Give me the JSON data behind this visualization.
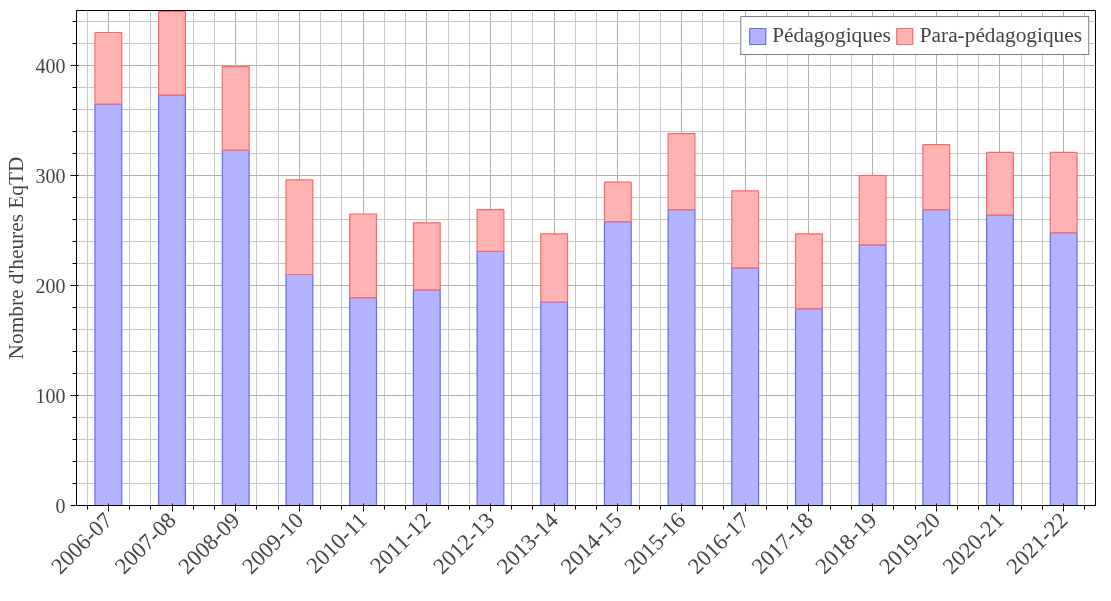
{
  "chart_data": {
    "type": "bar",
    "stacked": true,
    "ylabel": "Nombre d'heures EqTD",
    "categories": [
      "2006-07",
      "2007-08",
      "2008-09",
      "2009-10",
      "2010-11",
      "2011-12",
      "2012-13",
      "2013-14",
      "2014-15",
      "2015-16",
      "2016-17",
      "2017-18",
      "2018-19",
      "2019-20",
      "2020-21",
      "2021-22"
    ],
    "series": [
      {
        "name": "Pédagogiques",
        "color": "#b3b3ff",
        "values": [
          365,
          373,
          323,
          210,
          189,
          196,
          231,
          185,
          258,
          269,
          216,
          179,
          237,
          269,
          264,
          248
        ]
      },
      {
        "name": "Para-pédagogiques",
        "color": "#ffb3b3",
        "values": [
          65,
          76,
          76,
          86,
          76,
          61,
          38,
          62,
          36,
          69,
          70,
          68,
          63,
          59,
          57,
          73
        ]
      }
    ],
    "ylim": [
      0,
      450
    ],
    "yticks": [
      0,
      100,
      200,
      300,
      400
    ],
    "grid": true,
    "legend": "top right"
  }
}
